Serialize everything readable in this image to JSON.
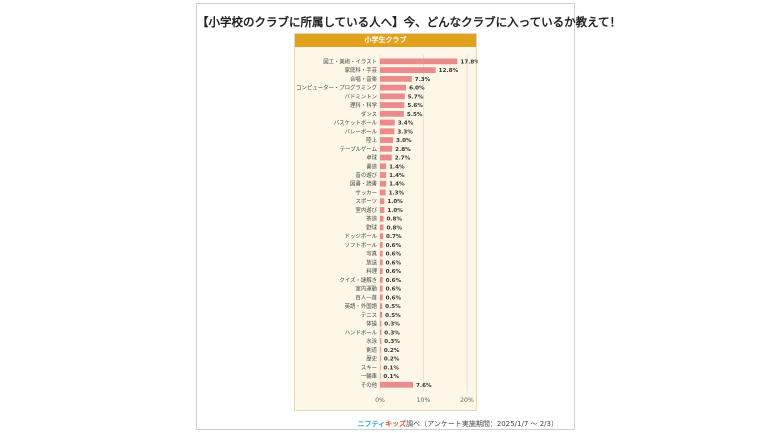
{
  "title": "【小学校のクラブに所属している人へ】今、どんなクラブに入っているか教えて！",
  "footer": {
    "brand": "ニフティキッズ",
    "text": "調べ（アンケート実施期間：2025/1/7 〜 2/3）"
  },
  "colors": {
    "bar": "#ec8b8b",
    "header": "#e0a21c",
    "panel": "#fdf7e8",
    "grid": "#ddd3bd"
  },
  "chart_data": {
    "type": "bar",
    "orientation": "horizontal",
    "title": "小学生クラブ",
    "categories": [
      "図工・美術・イラスト",
      "家庭科・手芸",
      "合唱・音楽",
      "コンピューター・プログラミング",
      "バドミントン",
      "理科・科学",
      "ダンス",
      "バスケットボール",
      "バレーボール",
      "陸上",
      "テーブルゲーム",
      "卓球",
      "書道",
      "昔の遊び",
      "図書・読書",
      "サッカー",
      "スポーツ",
      "室内遊び",
      "茶道",
      "野球",
      "ドッジボール",
      "ソフトボール",
      "写真",
      "放送",
      "料理",
      "クイズ・謎解き",
      "室内運動",
      "百人一首",
      "英語・外国語",
      "テニス",
      "体操",
      "ハンドボール",
      "水泳",
      "剣道",
      "歴史",
      "スキー",
      "一輪車",
      "その他"
    ],
    "values": [
      17.8,
      12.8,
      7.3,
      6.0,
      5.7,
      5.6,
      5.5,
      3.4,
      3.3,
      3.0,
      2.8,
      2.7,
      1.4,
      1.4,
      1.4,
      1.3,
      1.0,
      1.0,
      0.8,
      0.8,
      0.7,
      0.6,
      0.6,
      0.6,
      0.6,
      0.6,
      0.6,
      0.6,
      0.5,
      0.5,
      0.3,
      0.3,
      0.3,
      0.2,
      0.2,
      0.1,
      0.1,
      7.6
    ],
    "labels": [
      "17.8%",
      "12.8%",
      "7.3%",
      "6.0%",
      "5.7%",
      "5.6%",
      "5.5%",
      "3.4%",
      "3.3%",
      "3.0%",
      "2.8%",
      "2.7%",
      "1.4%",
      "1.4%",
      "1.4%",
      "1.3%",
      "1.0%",
      "1.0%",
      "0.8%",
      "0.8%",
      "0.7%",
      "0.6%",
      "0.6%",
      "0.6%",
      "0.6%",
      "0.6%",
      "0.6%",
      "0.6%",
      "0.5%",
      "0.5%",
      "0.3%",
      "0.3%",
      "0.3%",
      "0.2%",
      "0.2%",
      "0.1%",
      "0.1%",
      "7.6%"
    ],
    "xlim": [
      0,
      20
    ],
    "xticks": [
      "0%",
      "10%",
      "20%"
    ],
    "grid": true
  }
}
